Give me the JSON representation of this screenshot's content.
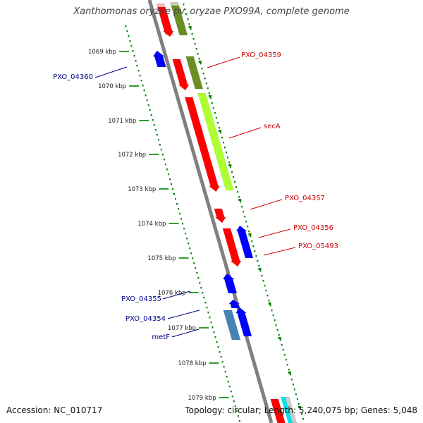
{
  "title": "Xanthomonas oryzae pv. oryzae PXO99A, complete genome",
  "footer": {
    "accession": "Accession: NC_010717",
    "summary": "Topology: circular; Length: 5,240,075 bp; Genes: 5,048"
  },
  "colors": {
    "forward_cds": "#ff0000",
    "reverse_cds": "#0000ff",
    "reverse_label": "#00008b",
    "forward_label": "#cc0000",
    "cog_olive": "#6b8e23",
    "cog_lime": "#adff2f",
    "cog_steelblue": "#4682b4",
    "backbone": "#808080",
    "ticks": "#008000"
  },
  "scale_ticks": [
    {
      "label": "1069 kbp"
    },
    {
      "label": "1070 kbp"
    },
    {
      "label": "1071 kbp"
    },
    {
      "label": "1072 kbp"
    },
    {
      "label": "1073 kbp"
    },
    {
      "label": "1074 kbp"
    },
    {
      "label": "1075 kbp"
    },
    {
      "label": "1076 kbp"
    },
    {
      "label": "1077 kbp"
    },
    {
      "label": "1078 kbp"
    },
    {
      "label": "1079 kbp"
    }
  ],
  "gene_labels": [
    {
      "text": "PXO_04359",
      "strand": "forward"
    },
    {
      "text": "secA",
      "strand": "forward"
    },
    {
      "text": "PXO_04357",
      "strand": "forward"
    },
    {
      "text": "PXO_04356",
      "strand": "forward"
    },
    {
      "text": "PXO_05493",
      "strand": "forward"
    },
    {
      "text": "PXO_04360",
      "strand": "reverse"
    },
    {
      "text": "PXO_04355",
      "strand": "reverse"
    },
    {
      "text": "PXO_04354",
      "strand": "reverse"
    },
    {
      "text": "metF",
      "strand": "reverse"
    }
  ]
}
